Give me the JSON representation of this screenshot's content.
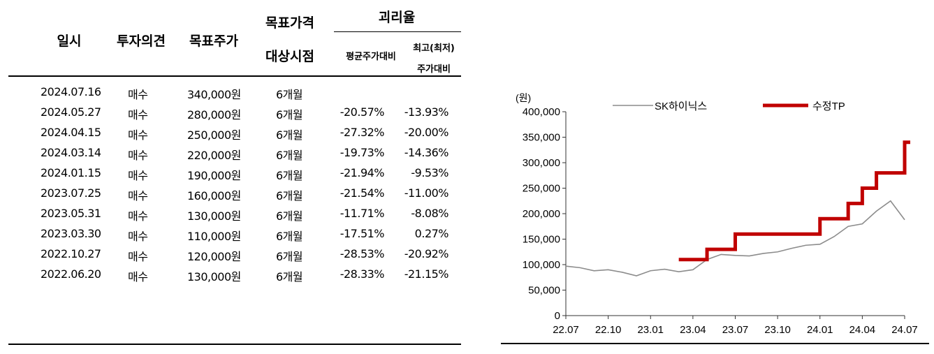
{
  "table": {
    "headers": {
      "date": "일시",
      "opinion": "투자의견",
      "target": "목표주가",
      "horizon_line1": "목표가격",
      "horizon_line2": "대상시점",
      "divergence": "괴리율",
      "avg": "평균주가대비",
      "hl_line1": "최고(최저)",
      "hl_line2": "주가대비"
    },
    "rows": [
      {
        "date": "2024.07.16",
        "opinion": "매수",
        "target": "340,000원",
        "horizon": "6개월",
        "avg": "",
        "hl": ""
      },
      {
        "date": "2024.05.27",
        "opinion": "매수",
        "target": "280,000원",
        "horizon": "6개월",
        "avg": "-20.57%",
        "hl": "-13.93%"
      },
      {
        "date": "2024.04.15",
        "opinion": "매수",
        "target": "250,000원",
        "horizon": "6개월",
        "avg": "-27.32%",
        "hl": "-20.00%"
      },
      {
        "date": "2024.03.14",
        "opinion": "매수",
        "target": "220,000원",
        "horizon": "6개월",
        "avg": "-19.73%",
        "hl": "-14.36%"
      },
      {
        "date": "2024.01.15",
        "opinion": "매수",
        "target": "190,000원",
        "horizon": "6개월",
        "avg": "-21.94%",
        "hl": "-9.53%"
      },
      {
        "date": "2023.07.25",
        "opinion": "매수",
        "target": "160,000원",
        "horizon": "6개월",
        "avg": "-21.54%",
        "hl": "-11.00%"
      },
      {
        "date": "2023.05.31",
        "opinion": "매수",
        "target": "130,000원",
        "horizon": "6개월",
        "avg": "-11.71%",
        "hl": "-8.08%"
      },
      {
        "date": "2023.03.30",
        "opinion": "매수",
        "target": "110,000원",
        "horizon": "6개월",
        "avg": "-17.51%",
        "hl": "0.27%"
      },
      {
        "date": "2022.10.27",
        "opinion": "매수",
        "target": "120,000원",
        "horizon": "6개월",
        "avg": "-28.53%",
        "hl": "-20.92%"
      },
      {
        "date": "2022.06.20",
        "opinion": "매수",
        "target": "130,000원",
        "horizon": "6개월",
        "avg": "-28.33%",
        "hl": "-21.15%"
      }
    ]
  },
  "chart_data": {
    "type": "line",
    "unit_label": "(원)",
    "ylim": [
      0,
      400000
    ],
    "yticks": [
      0,
      50000,
      100000,
      150000,
      200000,
      250000,
      300000,
      350000,
      400000
    ],
    "ytick_labels": [
      "0",
      "50,000",
      "100,000",
      "150,000",
      "200,000",
      "250,000",
      "300,000",
      "350,000",
      "400,000"
    ],
    "xlim": [
      "2022-07",
      "2024-07"
    ],
    "xtick_labels": [
      "22.07",
      "22.10",
      "23.01",
      "23.04",
      "23.07",
      "23.10",
      "24.01",
      "24.04",
      "24.07"
    ],
    "xtick_positions": [
      "2022-07",
      "2022-10",
      "2023-01",
      "2023-04",
      "2023-07",
      "2023-10",
      "2024-01",
      "2024-04",
      "2024-07"
    ],
    "grid": false,
    "legend_placement": "top",
    "series": [
      {
        "name": "SK하이닉스",
        "color": "#8c8c8c",
        "style": "price",
        "points": [
          [
            "2022-07",
            97000
          ],
          [
            "2022-08",
            94000
          ],
          [
            "2022-09",
            88000
          ],
          [
            "2022-10",
            90000
          ],
          [
            "2022-11",
            85000
          ],
          [
            "2022-12",
            78000
          ],
          [
            "2023-01",
            88000
          ],
          [
            "2023-02",
            91000
          ],
          [
            "2023-03",
            86000
          ],
          [
            "2023-04",
            90000
          ],
          [
            "2023-05",
            110000
          ],
          [
            "2023-06",
            120000
          ],
          [
            "2023-07",
            118000
          ],
          [
            "2023-08",
            117000
          ],
          [
            "2023-09",
            122000
          ],
          [
            "2023-10",
            125000
          ],
          [
            "2023-11",
            132000
          ],
          [
            "2023-12",
            138000
          ],
          [
            "2024-01",
            140000
          ],
          [
            "2024-02",
            155000
          ],
          [
            "2024-03",
            175000
          ],
          [
            "2024-04",
            180000
          ],
          [
            "2024-05",
            205000
          ],
          [
            "2024-06",
            225000
          ],
          [
            "2024-07",
            188000
          ]
        ]
      },
      {
        "name": "수정TP",
        "color": "#c00000",
        "style": "step",
        "points": [
          [
            "2023-03",
            110000
          ],
          [
            "2023-05",
            130000
          ],
          [
            "2023-07",
            160000
          ],
          [
            "2024-01",
            190000
          ],
          [
            "2024-03",
            220000
          ],
          [
            "2024-04",
            250000
          ],
          [
            "2024-05",
            280000
          ],
          [
            "2024-07",
            340000
          ]
        ]
      }
    ]
  }
}
